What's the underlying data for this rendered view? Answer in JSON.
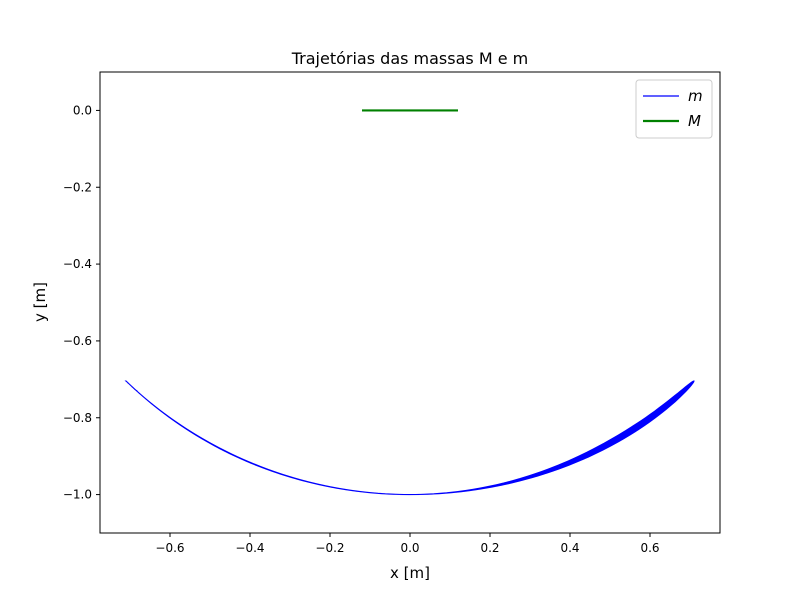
{
  "chart_data": {
    "type": "line",
    "title": "Trajetórias das massas M e m",
    "xlabel": "x [m]",
    "ylabel": "y [m]",
    "xlim": [
      -0.775,
      0.775
    ],
    "ylim": [
      -1.1,
      0.1
    ],
    "xticks": [
      -0.6,
      -0.4,
      -0.2,
      0.0,
      0.2,
      0.4,
      0.6
    ],
    "xtick_labels": [
      "−0.6",
      "−0.4",
      "−0.2",
      "0.0",
      "0.2",
      "0.4",
      "0.6"
    ],
    "yticks": [
      0.0,
      -0.2,
      -0.4,
      -0.6,
      -0.8,
      -1.0
    ],
    "ytick_labels": [
      "0.0",
      "−0.2",
      "−0.4",
      "−0.6",
      "−0.8",
      "−1.0"
    ],
    "grid": false,
    "legend_position": "top-right",
    "series": [
      {
        "name": "m",
        "color": "#0000ff",
        "description_points": {
          "x": [
            -0.71,
            -0.6,
            -0.4,
            -0.2,
            0.0,
            0.2,
            0.4,
            0.6,
            0.71
          ],
          "y": [
            -0.71,
            -0.8,
            -0.92,
            -0.98,
            -1.0,
            -0.98,
            -0.92,
            -0.8,
            -0.71
          ]
        },
        "amplitude_range": [
          0.66,
          0.71
        ],
        "arc_radius": 1.0
      },
      {
        "name": "M",
        "color": "#008000",
        "x": [
          -0.12,
          0.12
        ],
        "y": [
          0.0,
          0.0
        ]
      }
    ]
  }
}
